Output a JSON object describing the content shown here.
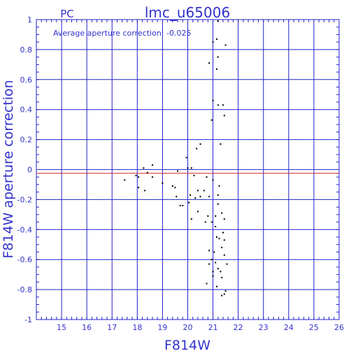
{
  "header": {
    "left_label": "PC"
  },
  "chart_data": {
    "type": "scatter",
    "title": "lmc_u65006",
    "xlabel": "F814W",
    "ylabel": "F814W aperture correction",
    "xlim": [
      14,
      26
    ],
    "ylim": [
      -1,
      1
    ],
    "xticks": [
      15,
      16,
      17,
      18,
      19,
      20,
      21,
      22,
      23,
      24,
      25,
      26
    ],
    "yticks": [
      -1,
      -0.8,
      -0.6,
      -0.4,
      -0.2,
      0,
      0.2,
      0.4,
      0.6,
      0.8,
      1
    ],
    "grid": true,
    "annotation": "Average aperture correction:  -0.025",
    "reference_lines": [
      {
        "y": 0,
        "color": "#3333cc"
      },
      {
        "y": -0.025,
        "color": "#cc2222"
      }
    ],
    "colors": {
      "axes": "#2222cc",
      "points": "#000000",
      "text": "#3333cc"
    },
    "points": [
      [
        21.2,
        0.99
      ],
      [
        21.15,
        0.87
      ],
      [
        21.0,
        0.85
      ],
      [
        21.5,
        0.83
      ],
      [
        21.2,
        0.75
      ],
      [
        20.85,
        0.71
      ],
      [
        21.15,
        0.67
      ],
      [
        21.0,
        0.46
      ],
      [
        21.2,
        0.43
      ],
      [
        21.4,
        0.43
      ],
      [
        21.45,
        0.36
      ],
      [
        20.95,
        0.33
      ],
      [
        20.5,
        0.17
      ],
      [
        21.3,
        0.17
      ],
      [
        20.35,
        0.14
      ],
      [
        19.95,
        0.08
      ],
      [
        18.6,
        0.03
      ],
      [
        20.0,
        0.01
      ],
      [
        18.25,
        0.01
      ],
      [
        20.15,
        0.01
      ],
      [
        19.6,
        -0.01
      ],
      [
        18.4,
        -0.02
      ],
      [
        17.95,
        -0.04
      ],
      [
        20.25,
        -0.04
      ],
      [
        18.05,
        -0.05
      ],
      [
        18.6,
        -0.05
      ],
      [
        20.75,
        -0.05
      ],
      [
        17.5,
        -0.07
      ],
      [
        21.0,
        -0.07
      ],
      [
        19.0,
        -0.09
      ],
      [
        19.4,
        -0.11
      ],
      [
        21.25,
        -0.11
      ],
      [
        18.05,
        -0.12
      ],
      [
        19.5,
        -0.12
      ],
      [
        20.4,
        -0.14
      ],
      [
        20.65,
        -0.14
      ],
      [
        18.3,
        -0.14
      ],
      [
        20.1,
        -0.17
      ],
      [
        21.2,
        -0.17
      ],
      [
        19.55,
        -0.18
      ],
      [
        20.5,
        -0.18
      ],
      [
        20.85,
        -0.18
      ],
      [
        20.3,
        -0.19
      ],
      [
        20.05,
        -0.22
      ],
      [
        21.2,
        -0.23
      ],
      [
        19.7,
        -0.24
      ],
      [
        19.8,
        -0.24
      ],
      [
        20.4,
        -0.28
      ],
      [
        21.35,
        -0.29
      ],
      [
        20.8,
        -0.31
      ],
      [
        21.1,
        -0.31
      ],
      [
        20.15,
        -0.33
      ],
      [
        21.45,
        -0.33
      ],
      [
        20.7,
        -0.35
      ],
      [
        20.95,
        -0.35
      ],
      [
        21.1,
        -0.38
      ],
      [
        21.4,
        -0.42
      ],
      [
        21.15,
        -0.45
      ],
      [
        21.25,
        -0.46
      ],
      [
        21.45,
        -0.47
      ],
      [
        21.35,
        -0.52
      ],
      [
        20.85,
        -0.54
      ],
      [
        21.05,
        -0.55
      ],
      [
        21.45,
        -0.57
      ],
      [
        20.95,
        -0.6
      ],
      [
        21.1,
        -0.62
      ],
      [
        20.85,
        -0.63
      ],
      [
        21.55,
        -0.63
      ],
      [
        21.2,
        -0.66
      ],
      [
        21.0,
        -0.68
      ],
      [
        21.3,
        -0.68
      ],
      [
        21.0,
        -0.71
      ],
      [
        21.35,
        -0.72
      ],
      [
        20.75,
        -0.76
      ],
      [
        21.15,
        -0.78
      ],
      [
        21.5,
        -0.81
      ],
      [
        21.45,
        -0.83
      ],
      [
        21.35,
        -0.84
      ]
    ]
  }
}
